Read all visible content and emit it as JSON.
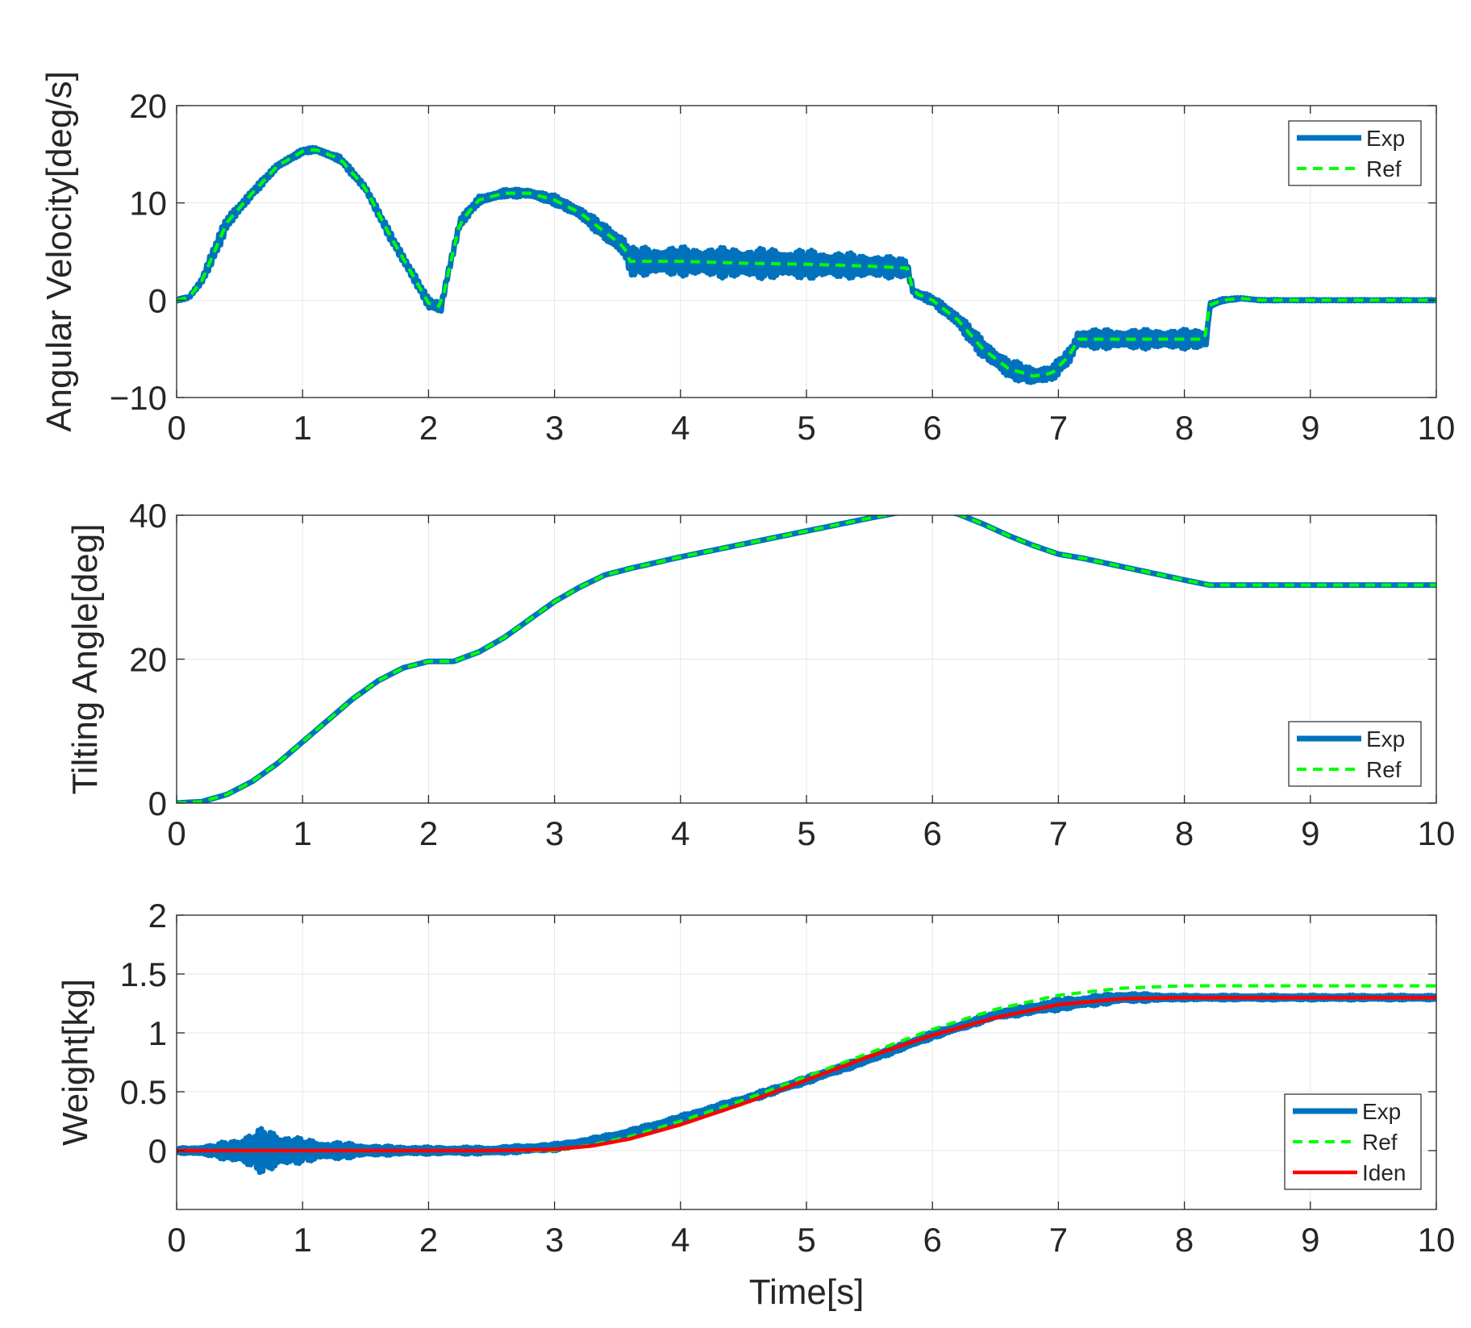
{
  "chart_data": [
    {
      "type": "line",
      "title": "",
      "xlabel": "",
      "ylabel": "Angular Velocity[deg/s]",
      "xlim": [
        0,
        10
      ],
      "ylim": [
        -10,
        20
      ],
      "xticks": [
        0,
        1,
        2,
        3,
        4,
        5,
        6,
        7,
        8,
        9,
        10
      ],
      "yticks": [
        -10,
        0,
        10,
        20
      ],
      "ytick_labels": [
        "−10",
        "0",
        "10",
        "20"
      ],
      "grid": true,
      "legend_position": "top-right",
      "series": [
        {
          "name": "Exp",
          "color": "#0072BD",
          "style": "solid-thick-noisy",
          "x": [
            0,
            0.1,
            0.2,
            0.3,
            0.4,
            0.6,
            0.8,
            1.0,
            1.1,
            1.3,
            1.5,
            1.7,
            1.9,
            2.0,
            2.1,
            2.15,
            2.25,
            2.4,
            2.6,
            2.8,
            3.0,
            3.2,
            3.4,
            3.55,
            3.6,
            4.0,
            4.5,
            5.0,
            5.5,
            5.8,
            5.85,
            6.0,
            6.2,
            6.4,
            6.6,
            6.8,
            6.95,
            7.1,
            7.15,
            7.6,
            8.0,
            8.18,
            8.2,
            8.3,
            8.45,
            8.6,
            9.0,
            10.0
          ],
          "y": [
            0,
            0.3,
            2,
            5,
            8,
            11,
            13.8,
            15.3,
            15.5,
            14.5,
            11.5,
            6.5,
            2,
            -0.3,
            -0.7,
            2.5,
            8,
            10.3,
            11,
            11,
            10.3,
            9,
            7,
            5.5,
            4,
            4,
            3.8,
            3.7,
            3.5,
            3.3,
            0.8,
            0,
            -2,
            -5,
            -7,
            -7.8,
            -7.5,
            -5.5,
            -4,
            -4,
            -4,
            -4,
            -0.5,
            0,
            0.2,
            0,
            0,
            0
          ],
          "noise": [
            0.1,
            0.1,
            0.4,
            0.8,
            0.7,
            0.4,
            0.3,
            0.25,
            0.25,
            0.3,
            0.4,
            0.5,
            0.6,
            0.5,
            0.5,
            0.5,
            0.5,
            0.4,
            0.4,
            0.4,
            0.5,
            0.6,
            0.8,
            1.2,
            1.5,
            1.5,
            1.6,
            1.5,
            1.2,
            1.0,
            0.4,
            0.4,
            0.8,
            1.0,
            1.0,
            0.9,
            0.8,
            0.8,
            1.0,
            1.0,
            1.0,
            1.0,
            0.3,
            0.15,
            0.08,
            0.05,
            0.05,
            0.05
          ]
        },
        {
          "name": "Ref",
          "color": "#00FF00",
          "style": "dashed",
          "x": [
            0,
            0.1,
            0.2,
            0.3,
            0.4,
            0.6,
            0.8,
            1.0,
            1.1,
            1.3,
            1.5,
            1.7,
            1.9,
            2.0,
            2.1,
            2.15,
            2.25,
            2.4,
            2.6,
            2.8,
            3.0,
            3.2,
            3.4,
            3.55,
            3.6,
            4.0,
            4.5,
            5.0,
            5.5,
            5.8,
            5.85,
            6.0,
            6.2,
            6.4,
            6.6,
            6.8,
            6.95,
            7.1,
            7.15,
            7.6,
            8.0,
            8.18,
            8.2,
            8.3,
            8.45,
            8.6,
            9.0,
            10.0
          ],
          "y": [
            0,
            0.3,
            2,
            5,
            8,
            11,
            13.8,
            15.3,
            15.5,
            14.5,
            11.5,
            6.5,
            2,
            -0.3,
            -0.7,
            2.5,
            8,
            10.3,
            11,
            11,
            10.3,
            9,
            7,
            5.5,
            4,
            4,
            3.8,
            3.7,
            3.5,
            3.3,
            0.8,
            0,
            -2,
            -5,
            -7,
            -7.8,
            -7.5,
            -5.5,
            -4,
            -4,
            -4,
            -4,
            -0.5,
            0,
            0.2,
            0,
            0,
            0
          ]
        }
      ]
    },
    {
      "type": "line",
      "title": "",
      "xlabel": "",
      "ylabel": "Tilting Angle[deg]",
      "xlim": [
        0,
        10
      ],
      "ylim": [
        0,
        40
      ],
      "xticks": [
        0,
        1,
        2,
        3,
        4,
        5,
        6,
        7,
        8,
        9,
        10
      ],
      "yticks": [
        0,
        20,
        40
      ],
      "ytick_labels": [
        "0",
        "20",
        "40"
      ],
      "grid": true,
      "legend_position": "bottom-right",
      "series": [
        {
          "name": "Exp",
          "color": "#0072BD",
          "style": "solid-thick",
          "x": [
            0,
            0.2,
            0.4,
            0.6,
            0.8,
            1.0,
            1.2,
            1.4,
            1.6,
            1.8,
            2.0,
            2.2,
            2.4,
            2.6,
            2.8,
            3.0,
            3.2,
            3.4,
            3.6,
            4.0,
            4.5,
            5.0,
            5.5,
            5.8,
            6.0,
            6.2,
            6.4,
            6.6,
            6.8,
            7.0,
            7.2,
            7.6,
            8.0,
            8.2,
            9.0,
            10.0
          ],
          "y": [
            0,
            0.2,
            1.2,
            3,
            5.5,
            8.5,
            11.5,
            14.5,
            17,
            18.8,
            19.7,
            19.7,
            21,
            23,
            25.5,
            28,
            30,
            31.7,
            32.6,
            34.2,
            36,
            37.8,
            39.6,
            40.6,
            40.8,
            40.2,
            38.8,
            37.2,
            35.8,
            34.6,
            34,
            32.5,
            31,
            30.3,
            30.3,
            30.3
          ]
        },
        {
          "name": "Ref",
          "color": "#00FF00",
          "style": "dashed",
          "x": [
            0,
            0.2,
            0.4,
            0.6,
            0.8,
            1.0,
            1.2,
            1.4,
            1.6,
            1.8,
            2.0,
            2.2,
            2.4,
            2.6,
            2.8,
            3.0,
            3.2,
            3.4,
            3.6,
            4.0,
            4.5,
            5.0,
            5.5,
            5.8,
            6.0,
            6.2,
            6.4,
            6.6,
            6.8,
            7.0,
            7.2,
            7.6,
            8.0,
            8.2,
            9.0,
            10.0
          ],
          "y": [
            0,
            0.2,
            1.2,
            3,
            5.5,
            8.5,
            11.5,
            14.5,
            17,
            18.8,
            19.7,
            19.7,
            21,
            23,
            25.5,
            28,
            30,
            31.7,
            32.6,
            34.2,
            36,
            37.8,
            39.6,
            40.6,
            40.8,
            40.2,
            38.8,
            37.2,
            35.8,
            34.6,
            34,
            32.5,
            31,
            30.3,
            30.3,
            30.3
          ]
        }
      ]
    },
    {
      "type": "line",
      "title": "",
      "xlabel": "Time[s]",
      "ylabel": "Weight[kg]",
      "xlim": [
        0,
        10
      ],
      "ylim": [
        -0.5,
        2
      ],
      "xticks": [
        0,
        1,
        2,
        3,
        4,
        5,
        6,
        7,
        8,
        9,
        10
      ],
      "yticks": [
        0,
        0.5,
        1,
        1.5,
        2
      ],
      "ytick_labels": [
        "0",
        "0.5",
        "1",
        "1.5",
        "2"
      ],
      "grid": true,
      "legend_position": "bottom-right",
      "series": [
        {
          "name": "Exp",
          "color": "#0072BD",
          "style": "solid-thick-noisy",
          "x": [
            0,
            0.3,
            0.5,
            0.7,
            1.0,
            1.3,
            1.6,
            2.0,
            2.5,
            3.0,
            3.3,
            3.6,
            4.0,
            4.5,
            5.0,
            5.5,
            6.0,
            6.5,
            7.0,
            7.5,
            8.0,
            9.0,
            10.0
          ],
          "y": [
            0,
            0,
            0,
            0,
            0,
            0,
            0,
            0,
            0,
            0.03,
            0.08,
            0.15,
            0.27,
            0.43,
            0.6,
            0.78,
            0.98,
            1.15,
            1.24,
            1.3,
            1.3,
            1.3,
            1.3
          ],
          "noise": [
            0.02,
            0.05,
            0.12,
            0.2,
            0.1,
            0.07,
            0.04,
            0.03,
            0.03,
            0.03,
            0.03,
            0.03,
            0.03,
            0.03,
            0.03,
            0.03,
            0.03,
            0.03,
            0.05,
            0.04,
            0.02,
            0.02,
            0.02
          ]
        },
        {
          "name": "Ref",
          "color": "#00FF00",
          "style": "dashed",
          "x": [
            0,
            3.0,
            3.3,
            3.6,
            4.0,
            4.5,
            5.0,
            5.5,
            6.0,
            6.5,
            7.0,
            7.5,
            8.0,
            9.0,
            10.0
          ],
          "y": [
            0,
            0,
            0.05,
            0.12,
            0.25,
            0.43,
            0.63,
            0.83,
            1.03,
            1.2,
            1.32,
            1.38,
            1.4,
            1.4,
            1.4
          ]
        },
        {
          "name": "Iden",
          "color": "#FF0000",
          "style": "solid",
          "x": [
            0,
            2.5,
            3.0,
            3.3,
            3.6,
            4.0,
            4.5,
            5.0,
            5.5,
            6.0,
            6.5,
            7.0,
            7.5,
            8.0,
            9.0,
            10.0
          ],
          "y": [
            0,
            0,
            0.01,
            0.04,
            0.1,
            0.22,
            0.4,
            0.6,
            0.8,
            0.98,
            1.13,
            1.24,
            1.29,
            1.3,
            1.3,
            1.3
          ]
        }
      ]
    }
  ]
}
